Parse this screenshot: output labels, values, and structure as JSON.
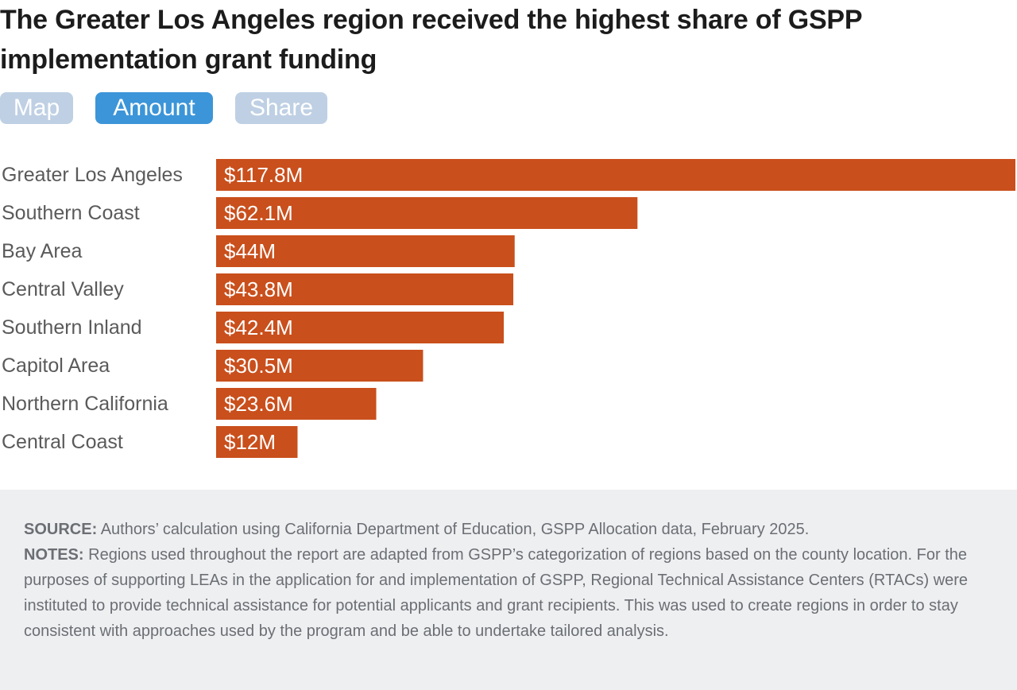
{
  "title": "The Greater Los Angeles region received the highest share of GSPP implementation grant funding",
  "tabs": [
    {
      "label": "Map",
      "active": false
    },
    {
      "label": "Amount",
      "active": true
    },
    {
      "label": "Share",
      "active": false
    }
  ],
  "colors": {
    "bar": "#c94f1c",
    "tab_active": "#3c95d8",
    "tab_inactive": "#bfd0e4"
  },
  "chart_data": {
    "type": "bar",
    "orientation": "horizontal",
    "categories": [
      "Greater Los Angeles",
      "Southern Coast",
      "Bay Area",
      "Central Valley",
      "Southern Inland",
      "Capitol Area",
      "Northern California",
      "Central Coast"
    ],
    "values": [
      117.8,
      62.1,
      44,
      43.8,
      42.4,
      30.5,
      23.6,
      12
    ],
    "data_labels": [
      "$117.8M",
      "$62.1M",
      "$44M",
      "$43.8M",
      "$42.4M",
      "$30.5M",
      "$23.6M",
      "$12M"
    ],
    "unit": "$M",
    "xlim": [
      0,
      117.8
    ],
    "grid": false,
    "legend": "none"
  },
  "footer": {
    "source_label": "SOURCE:",
    "source_text": "Authors’ calculation using California Department of Education, GSPP Allocation data, February 2025.",
    "notes_label": "NOTES:",
    "notes_text": "Regions used throughout the report are adapted from GSPP’s categorization of regions based on the county location. For the purposes of supporting LEAs in the application for and implementation of GSPP, Regional Technical Assistance Centers (RTACs) were instituted to provide technical assistance for potential applicants and grant recipients. This was used to create regions in order to stay consistent with approaches used by the program and be able to undertake tailored analysis."
  }
}
